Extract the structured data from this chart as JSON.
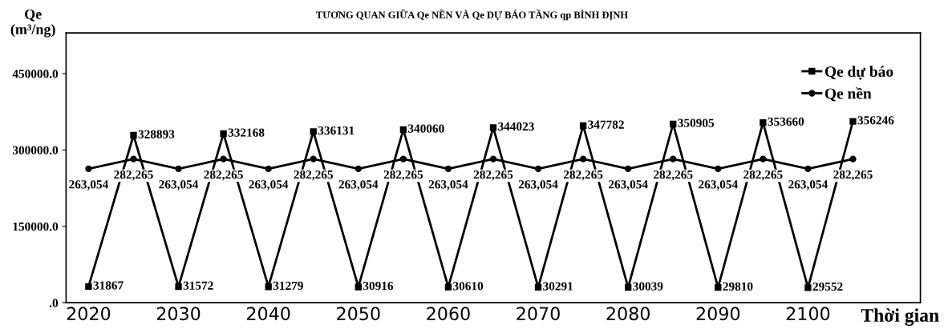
{
  "chart_data": {
    "type": "line",
    "title": "TƯƠNG QUAN GIỮA Qe NỀN VÀ Qe DỰ BÁO TẦNG qp BÌNH ĐỊNH",
    "ylabel": "Qe\n(m³/ng)",
    "xlabel": "Thời gian",
    "categories": [
      "2020",
      null,
      "2030",
      null,
      "2040",
      null,
      "2050",
      null,
      "2060",
      null,
      "2070",
      null,
      "2080",
      null,
      "2090",
      null,
      "2100",
      null
    ],
    "series": [
      {
        "name": "Qe dự báo",
        "color": "#000000",
        "marker": "square",
        "values": [
          31867,
          328893,
          31572,
          332168,
          31279,
          336131,
          30916,
          340060,
          30610,
          344023,
          30291,
          347782,
          30039,
          350905,
          29810,
          353660,
          29552,
          356246
        ],
        "value_labels": [
          "31867",
          "328893",
          "31572",
          "332168",
          "31279",
          "336131",
          "30916",
          "340060",
          "30610",
          "344023",
          "30291",
          "347782",
          "30039",
          "350905",
          "29810",
          "353660",
          "29552",
          "356246"
        ]
      },
      {
        "name": "Qe nền",
        "color": "#000000",
        "marker": "circle",
        "values": [
          263054,
          282265,
          263054,
          282265,
          263054,
          282265,
          263054,
          282265,
          263054,
          282265,
          263054,
          282265,
          263054,
          282265,
          263054,
          282265,
          263054,
          282265
        ],
        "value_labels": [
          "263,054",
          "282,265",
          "263,054",
          "282,265",
          "263,054",
          "282,265",
          "263,054",
          "282,265",
          "263,054",
          "282,265",
          "263,054",
          "282,265",
          "263,054",
          "282,265",
          "263,054",
          "282,265",
          "263,054",
          "282,265"
        ]
      }
    ],
    "ylim": [
      0,
      530000
    ],
    "yticks": [
      {
        "value": 0,
        "label": ".0"
      },
      {
        "value": 150000,
        "label": "150000.0"
      },
      {
        "value": 300000,
        "label": "300000.0"
      },
      {
        "value": 450000,
        "label": "450000.0"
      }
    ],
    "grid": false,
    "legend": "top right",
    "line_style": "solid"
  }
}
